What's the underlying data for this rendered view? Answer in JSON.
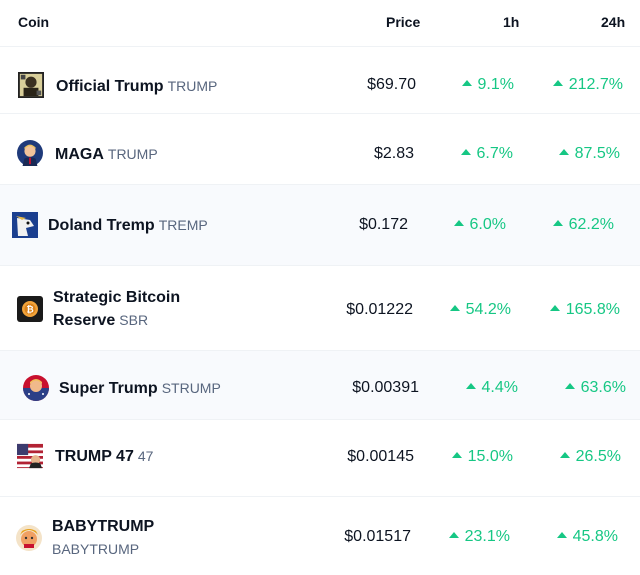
{
  "columns": {
    "coin": "Coin",
    "price": "Price",
    "h1": "1h",
    "h24": "24h"
  },
  "colors": {
    "up": "#16c784",
    "text": "#0d1421",
    "muted": "#58667e",
    "row_alt": "#f8fafd"
  },
  "rows": [
    {
      "name": "Official Trump",
      "symbol": "TRUMP",
      "price": "$69.70",
      "h1": "9.1%",
      "h24": "212.7%",
      "icon": "trump-portrait-icon"
    },
    {
      "name": "MAGA",
      "symbol": "TRUMP",
      "price": "$2.83",
      "h1": "6.7%",
      "h24": "87.5%",
      "icon": "maga-avatar-icon"
    },
    {
      "name": "Doland Tremp",
      "symbol": "TREMP",
      "price": "$0.172",
      "h1": "6.0%",
      "h24": "62.2%",
      "icon": "tremp-avatar-icon"
    },
    {
      "name_line1": "Strategic Bitcoin",
      "name_line2": "Reserve",
      "symbol": "SBR",
      "price": "$0.01222",
      "h1": "54.2%",
      "h24": "165.8%",
      "icon": "bitcoin-coin-icon"
    },
    {
      "name": "Super Trump",
      "symbol": "STRUMP",
      "price": "$0.00391",
      "h1": "4.4%",
      "h24": "63.6%",
      "icon": "super-trump-avatar-icon"
    },
    {
      "name": "TRUMP 47",
      "symbol": "47",
      "price": "$0.00145",
      "h1": "15.0%",
      "h24": "26.5%",
      "icon": "us-flag-icon"
    },
    {
      "name": "BABYTRUMP",
      "symbol": "BABYTRUMP",
      "price": "$0.01517",
      "h1": "23.1%",
      "h24": "45.8%",
      "icon": "babytrump-avatar-icon"
    }
  ]
}
